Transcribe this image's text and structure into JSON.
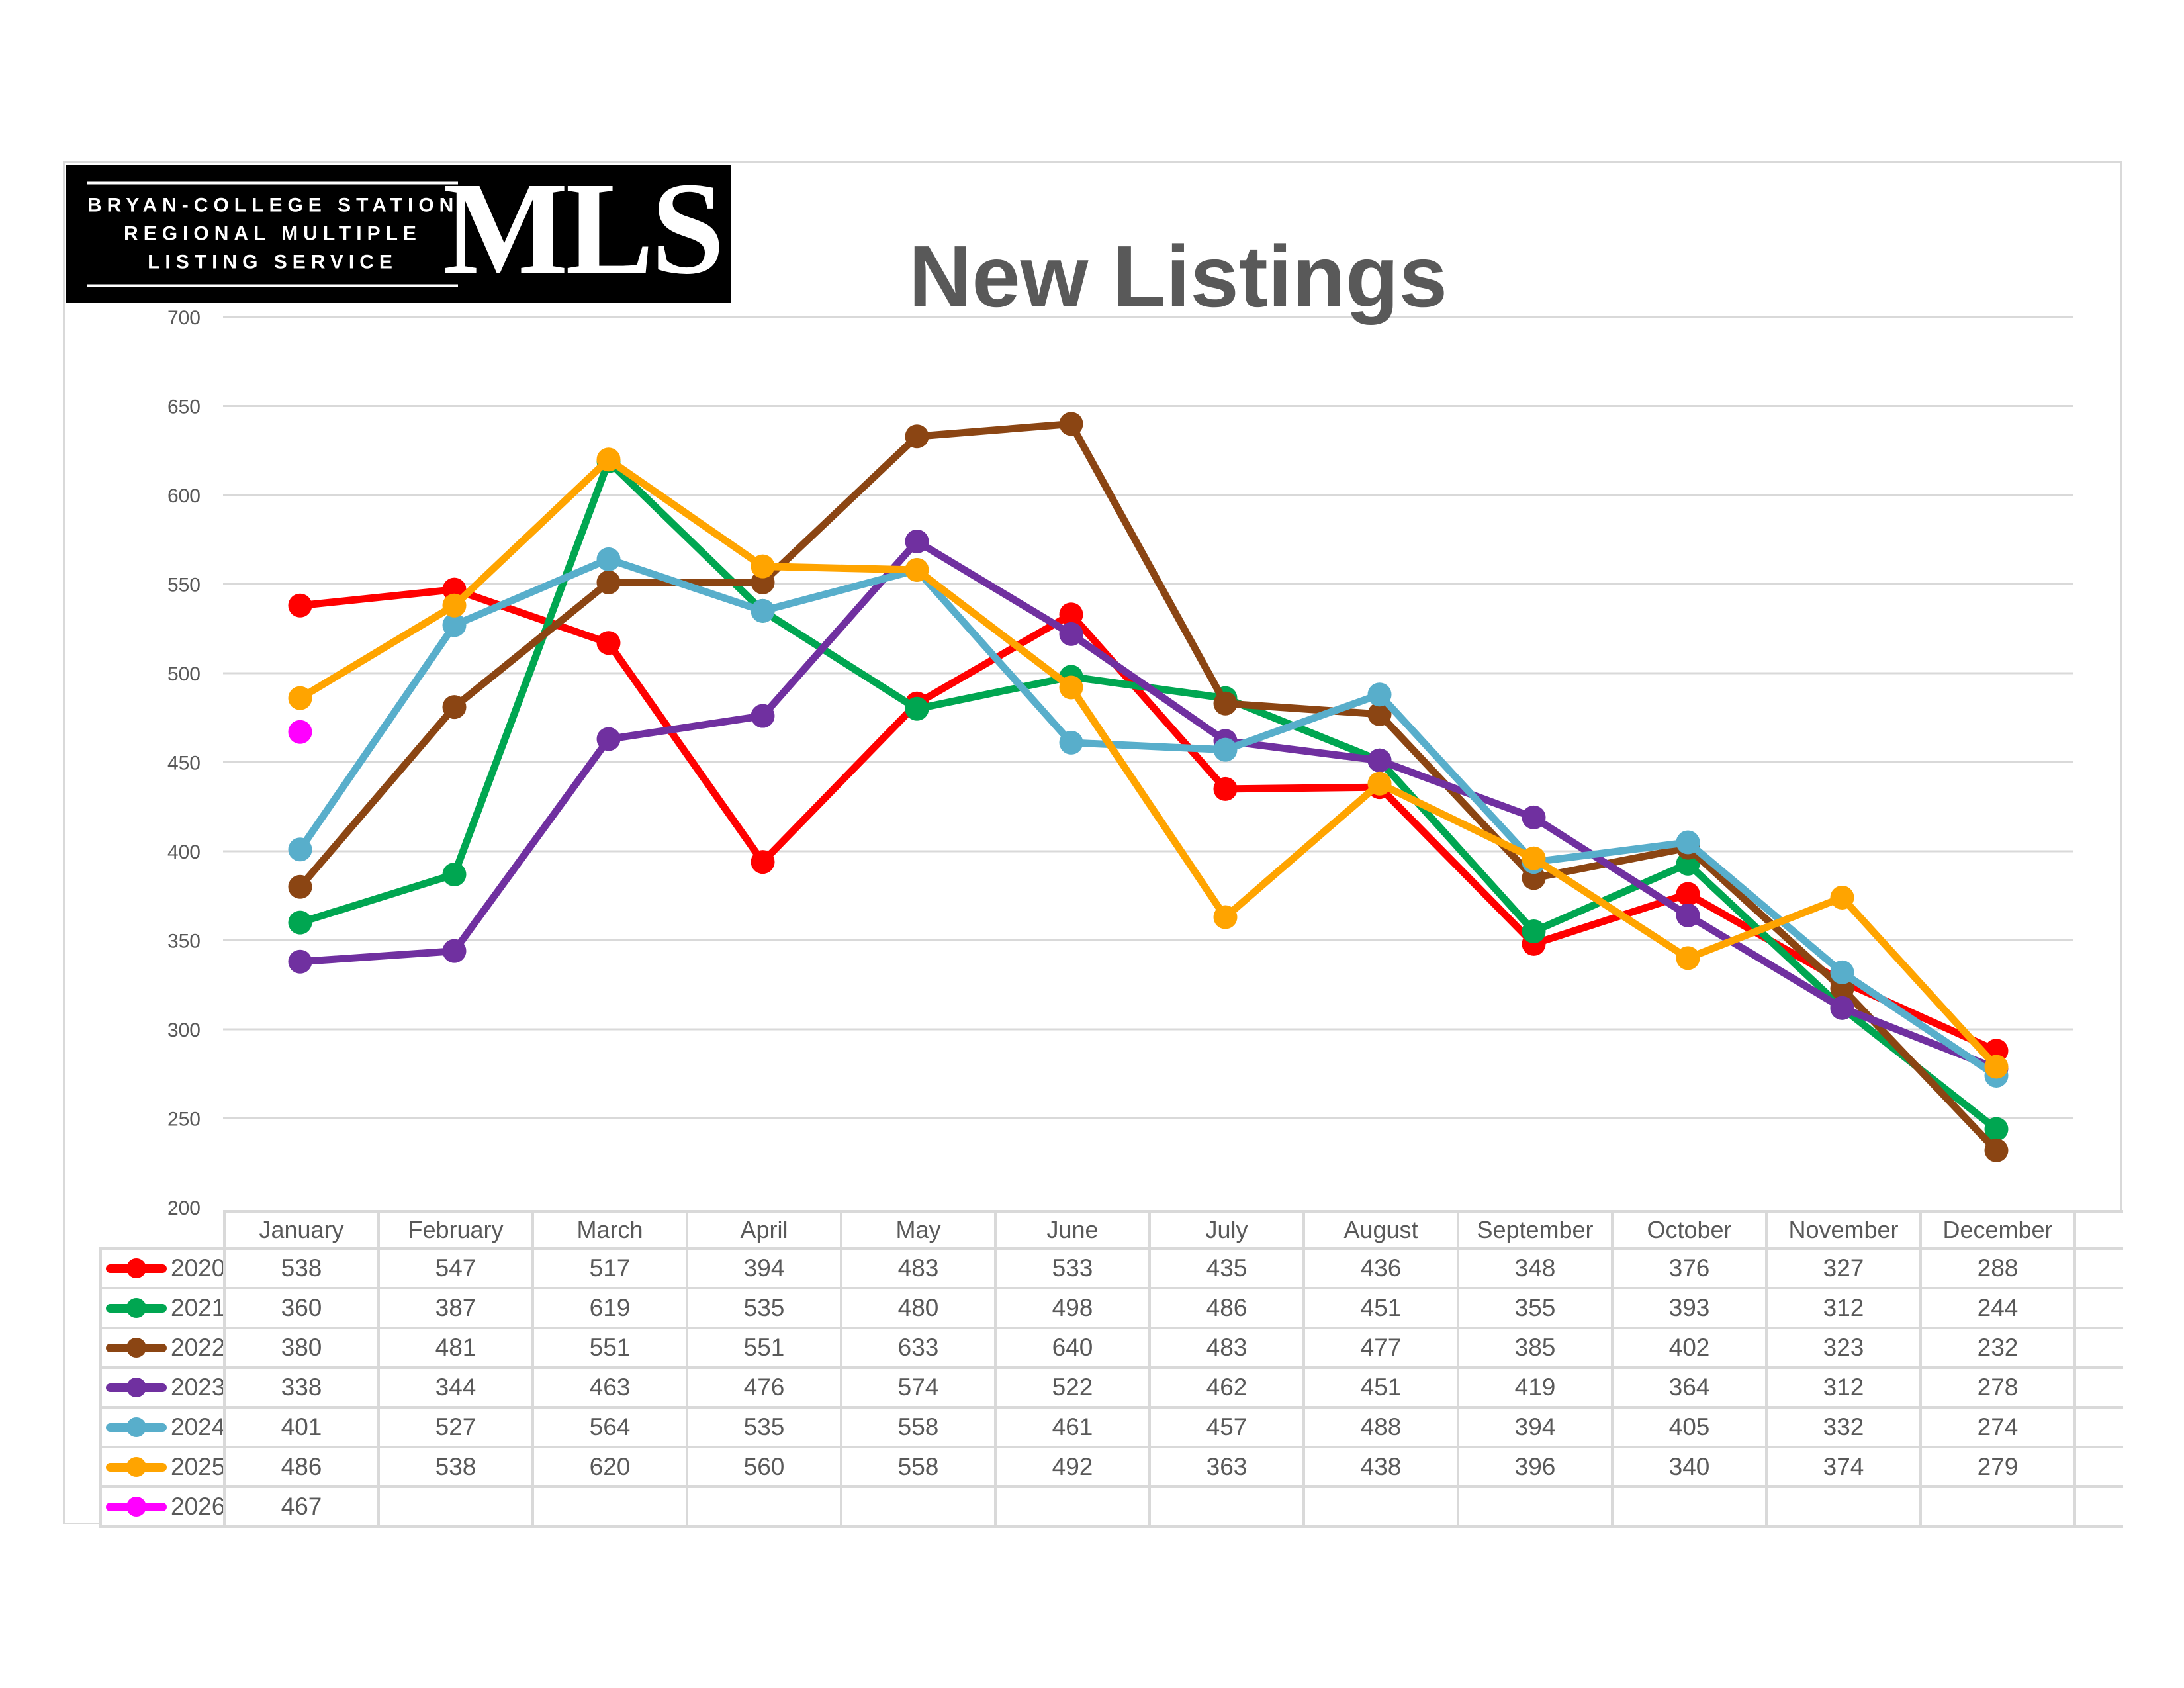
{
  "logo": {
    "line1": "BRYAN-COLLEGE STATION",
    "line2": "REGIONAL MULTIPLE",
    "line3": "LISTING SERVICE",
    "acronym": "MLS"
  },
  "title": "New Listings",
  "colors": {
    "frame_border": "#D9D9D9",
    "grid_line": "#D9D9D9",
    "text_gray": "#595959",
    "logo_background": "#000000",
    "background": "#FFFFFF"
  },
  "chart_data": {
    "type": "line",
    "title": "New Listings",
    "categories": [
      "January",
      "February",
      "March",
      "April",
      "May",
      "June",
      "July",
      "August",
      "September",
      "October",
      "November",
      "December"
    ],
    "ylim": [
      200,
      700
    ],
    "ytick_step": 50,
    "yticks": [
      200,
      250,
      300,
      350,
      400,
      450,
      500,
      550,
      600,
      650,
      700
    ],
    "grid": true,
    "legend_position": "table-left",
    "series": [
      {
        "name": "2020",
        "color": "#FF0000",
        "values": [
          538,
          547,
          517,
          394,
          483,
          533,
          435,
          436,
          348,
          376,
          327,
          288
        ]
      },
      {
        "name": "2021",
        "color": "#00A651",
        "values": [
          360,
          387,
          619,
          535,
          480,
          498,
          486,
          451,
          355,
          393,
          312,
          244
        ]
      },
      {
        "name": "2022",
        "color": "#8B4513",
        "values": [
          380,
          481,
          551,
          551,
          633,
          640,
          483,
          477,
          385,
          402,
          323,
          232
        ]
      },
      {
        "name": "2023",
        "color": "#7030A0",
        "values": [
          338,
          344,
          463,
          476,
          574,
          522,
          462,
          451,
          419,
          364,
          312,
          278
        ]
      },
      {
        "name": "2024",
        "color": "#58AECB",
        "values": [
          401,
          527,
          564,
          535,
          558,
          461,
          457,
          488,
          394,
          405,
          332,
          274
        ]
      },
      {
        "name": "2025",
        "color": "#FFA400",
        "values": [
          486,
          538,
          620,
          560,
          558,
          492,
          363,
          438,
          396,
          340,
          374,
          279
        ]
      },
      {
        "name": "2026",
        "color": "#FF00FF",
        "values": [
          467,
          null,
          null,
          null,
          null,
          null,
          null,
          null,
          null,
          null,
          null,
          null
        ]
      }
    ]
  }
}
